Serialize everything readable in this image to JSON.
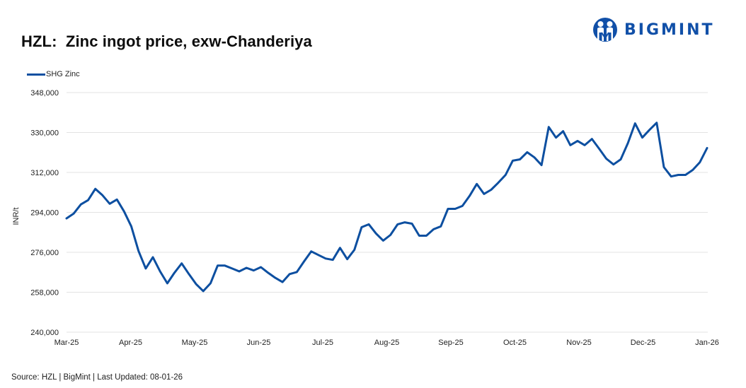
{
  "header": {
    "title": "HZL:  Zinc ingot price, exw-Chanderiya",
    "logo_text": "BIGMINT"
  },
  "legend": {
    "label": "SHG Zinc"
  },
  "footer": {
    "source": "Source: HZL | BigMint | Last Updated: 08-01-26"
  },
  "colors": {
    "series": "#0d4fa0",
    "brand": "#1150a8",
    "grid": "#e3e3e3"
  },
  "chart_data": {
    "type": "line",
    "title": "HZL:  Zinc ingot price, exw-Chanderiya",
    "xlabel": "",
    "ylabel": "INR/t",
    "ylim": [
      240000,
      348000
    ],
    "yticks": [
      240000,
      258000,
      276000,
      294000,
      312000,
      330000,
      348000
    ],
    "ytick_labels": [
      "240,000",
      "258,000",
      "276,000",
      "294,000",
      "312,000",
      "330,000",
      "348,000"
    ],
    "xtick_labels": [
      "Mar-25",
      "Apr-25",
      "May-25",
      "Jun-25",
      "Jul-25",
      "Aug-25",
      "Sep-25",
      "Oct-25",
      "Nov-25",
      "Dec-25",
      "Jan-26"
    ],
    "grid": "horizontal",
    "legend_position": "top-left",
    "series": [
      {
        "name": "SHG Zinc",
        "values": [
          291300,
          293500,
          297600,
          299500,
          304600,
          301700,
          297900,
          299800,
          294400,
          287700,
          276600,
          268700,
          273800,
          267400,
          262000,
          266800,
          271000,
          266200,
          261700,
          258500,
          262000,
          270000,
          270000,
          268700,
          267400,
          269000,
          267800,
          269300,
          266800,
          264500,
          262600,
          266200,
          267100,
          271900,
          276400,
          274800,
          273200,
          272600,
          278000,
          272900,
          277100,
          287300,
          288600,
          284500,
          281300,
          283800,
          288600,
          289500,
          288900,
          283500,
          283500,
          286400,
          287700,
          295600,
          295600,
          296900,
          301400,
          306800,
          302300,
          304200,
          307400,
          310900,
          317300,
          317900,
          321100,
          318800,
          315300,
          332500,
          327700,
          330600,
          324300,
          326200,
          324300,
          327100,
          322700,
          318200,
          315600,
          317900,
          325200,
          334100,
          327700,
          331200,
          334400,
          314400,
          310200,
          310900,
          310900,
          313100,
          316600,
          323000
        ]
      }
    ]
  }
}
